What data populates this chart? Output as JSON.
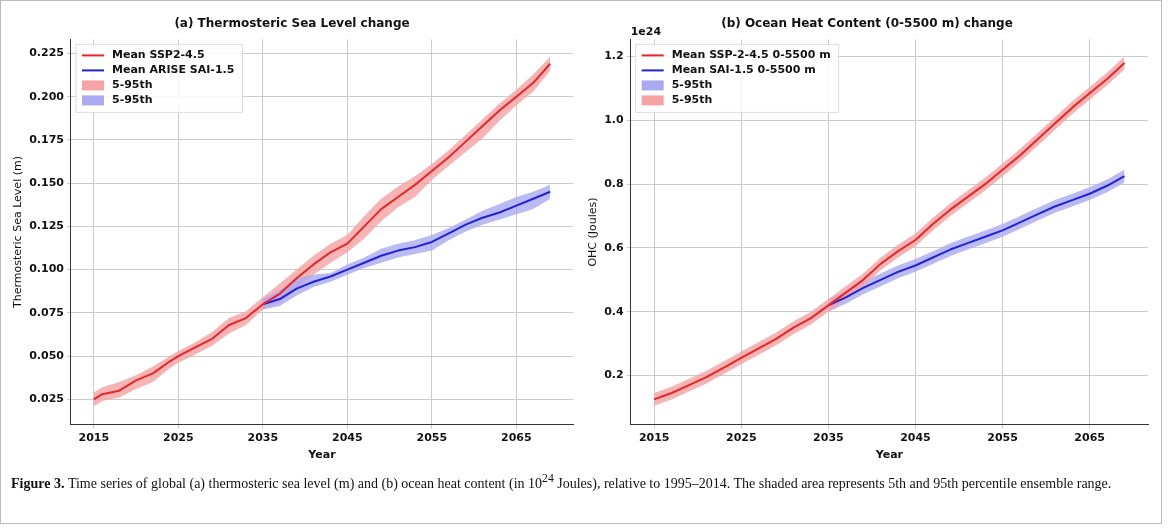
{
  "chart_data": [
    {
      "type": "line",
      "title": "(a) Thermosteric Sea Level change",
      "xlabel": "Year",
      "ylabel": "Thermosteric Sea Level (m)",
      "xlim": [
        2012.3,
        2071.7
      ],
      "ylim": [
        0.0104,
        0.2331
      ],
      "xticks": [
        2015,
        2025,
        2035,
        2045,
        2055,
        2065
      ],
      "yticks": [
        0.025,
        {
          "value": 0.05,
          "label": "0.050"
        },
        0.075,
        {
          "value": 0.1,
          "label": "0.100"
        },
        0.125,
        {
          "value": 0.15,
          "label": "0.150"
        },
        0.175,
        {
          "value": 0.2,
          "label": "0.200"
        },
        0.225
      ],
      "grid": true,
      "legend": "top left",
      "annotations": [
        "Figure 3.",
        "Time series of global (a) thermosteric sea level (m) and (b) ocean heat content (in 10$^{24}$ Joules), relative to 1995–2014. The shaded area represents 5th and 95th percentile ensemble range."
      ],
      "series": [
        {
          "type": "line",
          "name": "Mean SSP2-4.5",
          "color": "#e8262a",
          "x": [
            2015,
            2016,
            2018,
            2020,
            2022,
            2024,
            2025,
            2027,
            2029,
            2031,
            2033,
            2035,
            2037,
            2039,
            2041,
            2043,
            2045,
            2047,
            2049,
            2051,
            2053,
            2055,
            2057,
            2059,
            2061,
            2063,
            2065,
            2067,
            2069
          ],
          "values": [
            0.025,
            0.028,
            0.03,
            0.036,
            0.04,
            0.047,
            0.05,
            0.055,
            0.06,
            0.068,
            0.072,
            0.08,
            0.086,
            0.095,
            0.103,
            0.11,
            0.115,
            0.125,
            0.135,
            0.142,
            0.149,
            0.157,
            0.165,
            0.174,
            0.183,
            0.192,
            0.2,
            0.208,
            0.219
          ]
        },
        {
          "type": "line",
          "name": "Mean ARISE SAI-1.5",
          "color": "#2222d6",
          "x": [
            2035,
            2037,
            2039,
            2041,
            2043,
            2045,
            2047,
            2049,
            2051,
            2053,
            2055,
            2057,
            2059,
            2061,
            2063,
            2065,
            2067,
            2069
          ],
          "values": [
            0.08,
            0.083,
            0.089,
            0.093,
            0.096,
            0.1,
            0.104,
            0.108,
            0.111,
            0.113,
            0.116,
            0.121,
            0.126,
            0.13,
            0.133,
            0.137,
            0.141,
            0.145
          ]
        },
        {
          "type": "area",
          "name": "5-95th",
          "color": "#f5a3a3",
          "x": [
            2015,
            2016,
            2018,
            2020,
            2022,
            2024,
            2025,
            2027,
            2029,
            2031,
            2033,
            2035,
            2037,
            2039,
            2041,
            2043,
            2045,
            2047,
            2049,
            2051,
            2053,
            2055,
            2057,
            2059,
            2061,
            2063,
            2065,
            2067,
            2069
          ],
          "values": [
            null,
            null,
            null,
            null,
            null,
            null,
            null,
            null,
            null,
            null,
            null,
            null,
            null,
            null,
            null,
            null,
            null,
            null,
            null,
            null,
            null,
            null,
            null,
            null,
            null,
            null,
            null,
            null,
            null
          ],
          "lower": [
            0.021,
            0.024,
            0.026,
            0.031,
            0.035,
            0.043,
            0.046,
            0.051,
            0.056,
            0.063,
            0.068,
            0.077,
            0.081,
            0.089,
            0.097,
            0.104,
            0.11,
            0.118,
            0.128,
            0.136,
            0.142,
            0.152,
            0.16,
            0.168,
            0.176,
            0.186,
            0.195,
            0.203,
            0.215
          ],
          "upper": [
            0.029,
            0.032,
            0.035,
            0.039,
            0.044,
            0.05,
            0.053,
            0.058,
            0.064,
            0.072,
            0.076,
            0.084,
            0.092,
            0.1,
            0.108,
            0.115,
            0.12,
            0.131,
            0.141,
            0.148,
            0.154,
            0.161,
            0.169,
            0.178,
            0.187,
            0.196,
            0.204,
            0.213,
            0.223
          ]
        },
        {
          "type": "area",
          "name": "5-95th",
          "color": "#aaaaf2",
          "x": [
            2035,
            2037,
            2039,
            2041,
            2043,
            2045,
            2047,
            2049,
            2051,
            2053,
            2055,
            2057,
            2059,
            2061,
            2063,
            2065,
            2067,
            2069
          ],
          "values": [
            null,
            null,
            null,
            null,
            null,
            null,
            null,
            null,
            null,
            null,
            null,
            null,
            null,
            null,
            null,
            null,
            null,
            null
          ],
          "lower": [
            0.077,
            0.079,
            0.085,
            0.09,
            0.093,
            0.097,
            0.101,
            0.104,
            0.107,
            0.109,
            0.111,
            0.117,
            0.122,
            0.126,
            0.129,
            0.132,
            0.135,
            0.141
          ],
          "upper": [
            0.083,
            0.088,
            0.095,
            0.097,
            0.098,
            0.103,
            0.107,
            0.112,
            0.115,
            0.117,
            0.12,
            0.124,
            0.129,
            0.134,
            0.138,
            0.142,
            0.145,
            0.149
          ]
        }
      ]
    },
    {
      "type": "line",
      "title": "(b) Ocean Heat Content (0-5500 m) change",
      "xlabel": "Year",
      "ylabel": "OHC (Joules)",
      "xlim": [
        2012.3,
        2071.7
      ],
      "ylim": [
        0.046,
        1.254
      ],
      "xticks": [
        2015,
        2025,
        2035,
        2045,
        2055,
        2065
      ],
      "yticks": [
        0.2,
        0.4,
        0.6,
        0.8,
        {
          "value": 1,
          "label": "1.0"
        },
        1.2
      ],
      "grid": true,
      "legend": "top left",
      "annotations": [
        "1e24"
      ],
      "series": [
        {
          "type": "line",
          "name": "Mean SSP-2-4.5 0-5500 m",
          "color": "#e8262a",
          "x": [
            2015,
            2017,
            2019,
            2021,
            2023,
            2025,
            2027,
            2029,
            2031,
            2033,
            2035,
            2037,
            2039,
            2041,
            2043,
            2045,
            2047,
            2049,
            2051,
            2053,
            2055,
            2057,
            2059,
            2061,
            2063,
            2065,
            2067,
            2069
          ],
          "values": [
            0.125,
            0.145,
            0.17,
            0.195,
            0.225,
            0.255,
            0.285,
            0.315,
            0.35,
            0.38,
            0.42,
            0.46,
            0.5,
            0.55,
            0.59,
            0.625,
            0.675,
            0.72,
            0.76,
            0.8,
            0.845,
            0.89,
            0.94,
            0.99,
            1.04,
            1.085,
            1.13,
            1.18
          ]
        },
        {
          "type": "line",
          "name": "Mean SAI-1.5 0-5500 m",
          "color": "#2222d6",
          "x": [
            2035,
            2037,
            2039,
            2041,
            2043,
            2045,
            2047,
            2049,
            2051,
            2053,
            2055,
            2057,
            2059,
            2061,
            2063,
            2065,
            2067,
            2069
          ],
          "values": [
            0.42,
            0.445,
            0.475,
            0.5,
            0.525,
            0.545,
            0.57,
            0.595,
            0.615,
            0.635,
            0.655,
            0.68,
            0.705,
            0.73,
            0.75,
            0.77,
            0.795,
            0.825
          ]
        },
        {
          "type": "area",
          "name": "5-95th",
          "color": "#aaaaf2",
          "x": [
            2035,
            2037,
            2039,
            2041,
            2043,
            2045,
            2047,
            2049,
            2051,
            2053,
            2055,
            2057,
            2059,
            2061,
            2063,
            2065,
            2067,
            2069
          ],
          "values": [
            null,
            null,
            null,
            null,
            null,
            null,
            null,
            null,
            null,
            null,
            null,
            null,
            null,
            null,
            null,
            null,
            null,
            null
          ],
          "lower": [
            0.4,
            0.425,
            0.455,
            0.48,
            0.505,
            0.525,
            0.55,
            0.575,
            0.595,
            0.615,
            0.635,
            0.66,
            0.685,
            0.71,
            0.73,
            0.75,
            0.775,
            0.805
          ],
          "upper": [
            0.44,
            0.465,
            0.495,
            0.52,
            0.545,
            0.565,
            0.59,
            0.615,
            0.635,
            0.655,
            0.675,
            0.7,
            0.725,
            0.75,
            0.77,
            0.79,
            0.815,
            0.845
          ]
        },
        {
          "type": "area",
          "name": "5-95th",
          "color": "#f5a3a3",
          "x": [
            2015,
            2017,
            2019,
            2021,
            2023,
            2025,
            2027,
            2029,
            2031,
            2033,
            2035,
            2037,
            2039,
            2041,
            2043,
            2045,
            2047,
            2049,
            2051,
            2053,
            2055,
            2057,
            2059,
            2061,
            2063,
            2065,
            2067,
            2069
          ],
          "values": [
            null,
            null,
            null,
            null,
            null,
            null,
            null,
            null,
            null,
            null,
            null,
            null,
            null,
            null,
            null,
            null,
            null,
            null,
            null,
            null,
            null,
            null,
            null,
            null,
            null,
            null,
            null,
            null
          ],
          "lower": [
            0.105,
            0.125,
            0.15,
            0.175,
            0.205,
            0.235,
            0.265,
            0.295,
            0.33,
            0.36,
            0.4,
            0.44,
            0.48,
            0.53,
            0.57,
            0.605,
            0.655,
            0.7,
            0.74,
            0.78,
            0.825,
            0.87,
            0.92,
            0.97,
            1.02,
            1.065,
            1.11,
            1.16
          ],
          "upper": [
            0.145,
            0.165,
            0.19,
            0.215,
            0.245,
            0.275,
            0.305,
            0.335,
            0.37,
            0.4,
            0.44,
            0.48,
            0.52,
            0.57,
            0.61,
            0.645,
            0.695,
            0.74,
            0.78,
            0.82,
            0.865,
            0.91,
            0.96,
            1.01,
            1.06,
            1.105,
            1.15,
            1.2
          ]
        }
      ]
    }
  ]
}
